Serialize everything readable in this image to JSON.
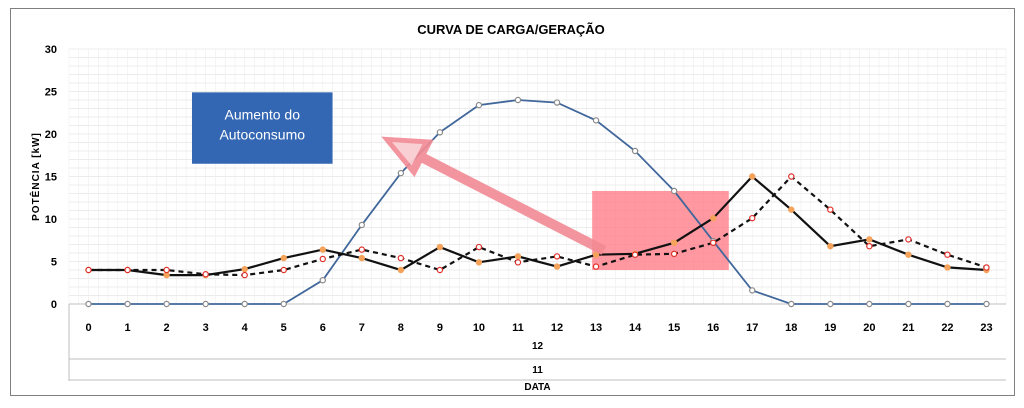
{
  "chart_data": {
    "type": "line",
    "title": "CURVA DE CARGA/GERAÇÃO",
    "ylabel": "POTÊNCIA [kW]",
    "xlabel": "DATA",
    "ylim": [
      0,
      30
    ],
    "yticks": [
      0,
      5,
      10,
      15,
      20,
      25,
      30
    ],
    "x": [
      "0",
      "1",
      "2",
      "3",
      "4",
      "5",
      "6",
      "7",
      "8",
      "9",
      "10",
      "11",
      "12",
      "13",
      "14",
      "15",
      "16",
      "17",
      "18",
      "19",
      "20",
      "21",
      "22",
      "23"
    ],
    "category_levels": [
      "12",
      "11"
    ],
    "grid": true,
    "legend": "none",
    "series": [
      {
        "color": "#41679b",
        "marker_fill": "#ffffff",
        "marker_stroke": "#8a8a8a",
        "dash": "solid",
        "values": [
          0,
          0,
          0,
          0,
          0,
          0,
          2.8,
          9.3,
          15.4,
          20.2,
          23.4,
          24.0,
          23.7,
          21.6,
          18.0,
          13.3,
          7.4,
          1.6,
          0,
          0,
          0,
          0,
          0,
          0
        ]
      },
      {
        "color": "#111111",
        "marker_fill": "#f5a25a",
        "marker_stroke": "#f5a25a",
        "dash": "solid",
        "values": [
          4.0,
          4.0,
          3.4,
          3.4,
          4.1,
          5.4,
          6.4,
          5.4,
          4.0,
          6.7,
          4.9,
          5.6,
          4.4,
          5.8,
          5.9,
          7.2,
          10.1,
          15.0,
          11.1,
          6.8,
          7.6,
          5.8,
          4.3,
          4.0
        ]
      },
      {
        "color": "#111111",
        "marker_fill": "#ffffff",
        "marker_stroke": "#e0302a",
        "dash": "dashed",
        "values": [
          4.0,
          4.0,
          4.0,
          3.5,
          3.4,
          4.0,
          5.3,
          6.4,
          5.4,
          4.0,
          6.7,
          4.9,
          5.6,
          4.4,
          5.8,
          5.9,
          7.2,
          10.1,
          15.0,
          11.1,
          6.8,
          7.6,
          5.8,
          4.3
        ]
      }
    ],
    "annotations": [
      {
        "text_lines": [
          "Aumento do",
          "Autoconsumo"
        ],
        "box_color": "#3467b3"
      }
    ],
    "highlight_color": "#ff7b86",
    "arrow_color": "#f28a94"
  }
}
